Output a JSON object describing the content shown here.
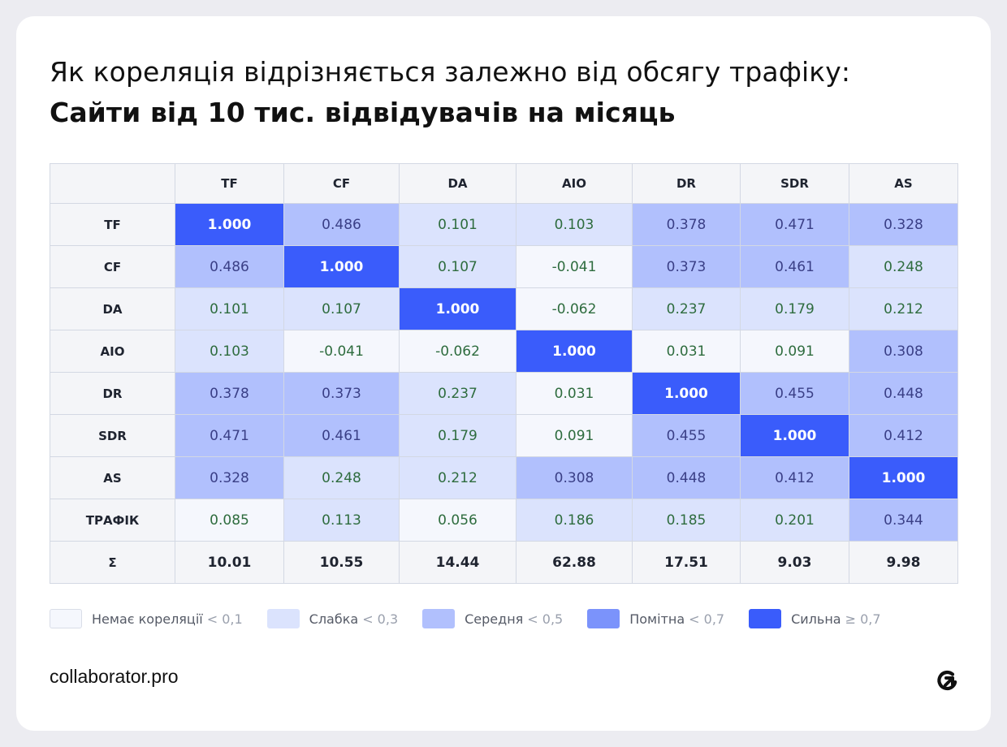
{
  "title": {
    "line1": "Як кореляція відрізняється залежно від обсягу трафіку:",
    "line2": "Сайти від 10 тис. відвідувачів на місяць"
  },
  "chart_data": {
    "type": "heatmap",
    "title": "Як кореляція відрізняється залежно від обсягу трафіку: Сайти від 10 тис. відвідувачів на місяць",
    "columns": [
      "TF",
      "CF",
      "DA",
      "AIO",
      "DR",
      "SDR",
      "AS"
    ],
    "rows": [
      {
        "label": "TF",
        "values": [
          "1.000",
          "0.486",
          "0.101",
          "0.103",
          "0.378",
          "0.471",
          "0.328"
        ]
      },
      {
        "label": "CF",
        "values": [
          "0.486",
          "1.000",
          "0.107",
          "-0.041",
          "0.373",
          "0.461",
          "0.248"
        ]
      },
      {
        "label": "DA",
        "values": [
          "0.101",
          "0.107",
          "1.000",
          "-0.062",
          "0.237",
          "0.179",
          "0.212"
        ]
      },
      {
        "label": "AIO",
        "values": [
          "0.103",
          "-0.041",
          "-0.062",
          "1.000",
          "0.031",
          "0.091",
          "0.308"
        ]
      },
      {
        "label": "DR",
        "values": [
          "0.378",
          "0.373",
          "0.237",
          "0.031",
          "1.000",
          "0.455",
          "0.448"
        ]
      },
      {
        "label": "SDR",
        "values": [
          "0.471",
          "0.461",
          "0.179",
          "0.091",
          "0.455",
          "1.000",
          "0.412"
        ]
      },
      {
        "label": "AS",
        "values": [
          "0.328",
          "0.248",
          "0.212",
          "0.308",
          "0.448",
          "0.412",
          "1.000"
        ]
      },
      {
        "label": "ТРАФІК",
        "values": [
          "0.085",
          "0.113",
          "0.056",
          "0.186",
          "0.185",
          "0.201",
          "0.344"
        ]
      }
    ],
    "sum_row": {
      "label": "Σ",
      "values": [
        "10.01",
        "10.55",
        "14.44",
        "62.88",
        "17.51",
        "9.03",
        "9.98"
      ]
    },
    "legend": [
      {
        "label": "Немає кореляції",
        "threshold": "< 0,1",
        "color": "#f5f7fd"
      },
      {
        "label": "Слабка",
        "threshold": "< 0,3",
        "color": "#dbe3fd"
      },
      {
        "label": "Середня",
        "threshold": "< 0,5",
        "color": "#b1c0fd"
      },
      {
        "label": "Помітна",
        "threshold": "< 0,7",
        "color": "#7b93fb"
      },
      {
        "label": "Сильна",
        "threshold": "≥ 0,7",
        "color": "#3a5cfb"
      }
    ]
  },
  "footer": {
    "brand": "collaborator.pro",
    "logo_icon": "collaborator-logo-icon",
    "accent_color": "#3a5cfb"
  }
}
